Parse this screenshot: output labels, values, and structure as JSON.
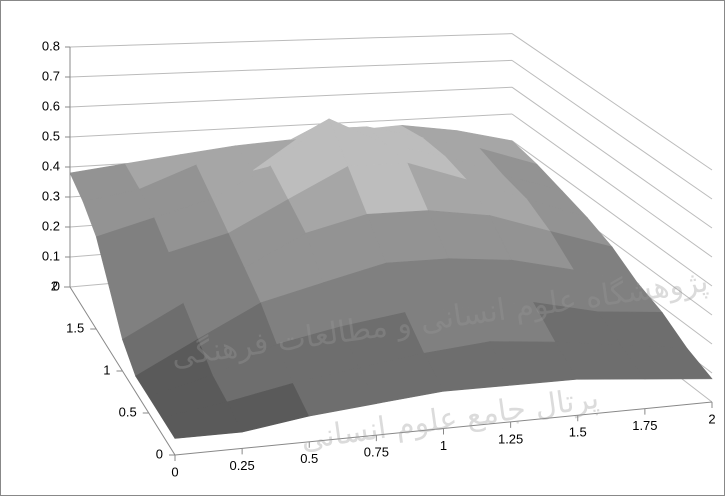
{
  "chart_data": {
    "type": "surface",
    "x": [
      0,
      0.25,
      0.5,
      0.75,
      1,
      1.25,
      1.5,
      1.75,
      2
    ],
    "y": [
      0,
      0.25,
      0.5,
      0.75,
      1,
      1.25,
      1.5,
      1.75,
      2
    ],
    "z": [
      [
        0.05,
        0.05,
        0.08,
        0.1,
        0.12,
        0.12,
        0.12,
        0.1,
        0.08
      ],
      [
        0.05,
        0.08,
        0.12,
        0.15,
        0.18,
        0.2,
        0.18,
        0.15,
        0.12
      ],
      [
        0.05,
        0.1,
        0.18,
        0.22,
        0.25,
        0.25,
        0.25,
        0.2,
        0.18
      ],
      [
        0.05,
        0.15,
        0.25,
        0.3,
        0.35,
        0.35,
        0.33,
        0.28,
        0.22
      ],
      [
        0.1,
        0.2,
        0.3,
        0.4,
        0.45,
        0.45,
        0.42,
        0.35,
        0.28
      ],
      [
        0.2,
        0.3,
        0.35,
        0.45,
        0.55,
        0.55,
        0.48,
        0.4,
        0.32
      ],
      [
        0.3,
        0.35,
        0.4,
        0.5,
        0.65,
        0.55,
        0.5,
        0.42,
        0.35
      ],
      [
        0.35,
        0.38,
        0.45,
        0.42,
        0.55,
        0.55,
        0.5,
        0.45,
        0.38
      ],
      [
        0.38,
        0.4,
        0.42,
        0.44,
        0.45,
        0.47,
        0.48,
        0.45,
        0.4
      ]
    ],
    "xlim": [
      0,
      2
    ],
    "xticks": [
      0,
      0.25,
      0.5,
      0.75,
      1,
      1.25,
      1.5,
      1.75,
      2
    ],
    "ylim": [
      0,
      2
    ],
    "yticks": [
      0,
      0.5,
      1,
      1.5,
      2
    ],
    "zlim": [
      0,
      0.8
    ],
    "zticks": [
      0,
      0.1,
      0.2,
      0.3,
      0.4,
      0.5,
      0.6,
      0.7,
      0.8
    ],
    "grid": true,
    "band_colors": [
      "#5a5a5a",
      "#6e6e6e",
      "#808080",
      "#939393",
      "#a6a6a6",
      "#bdbdbd",
      "#d9d9d9",
      "#ececec"
    ]
  },
  "watermark": [
    "پژوهشگاه علوم انسانی و مطالعات فرهنگی",
    "پرتال جامع علوم انسانی"
  ]
}
